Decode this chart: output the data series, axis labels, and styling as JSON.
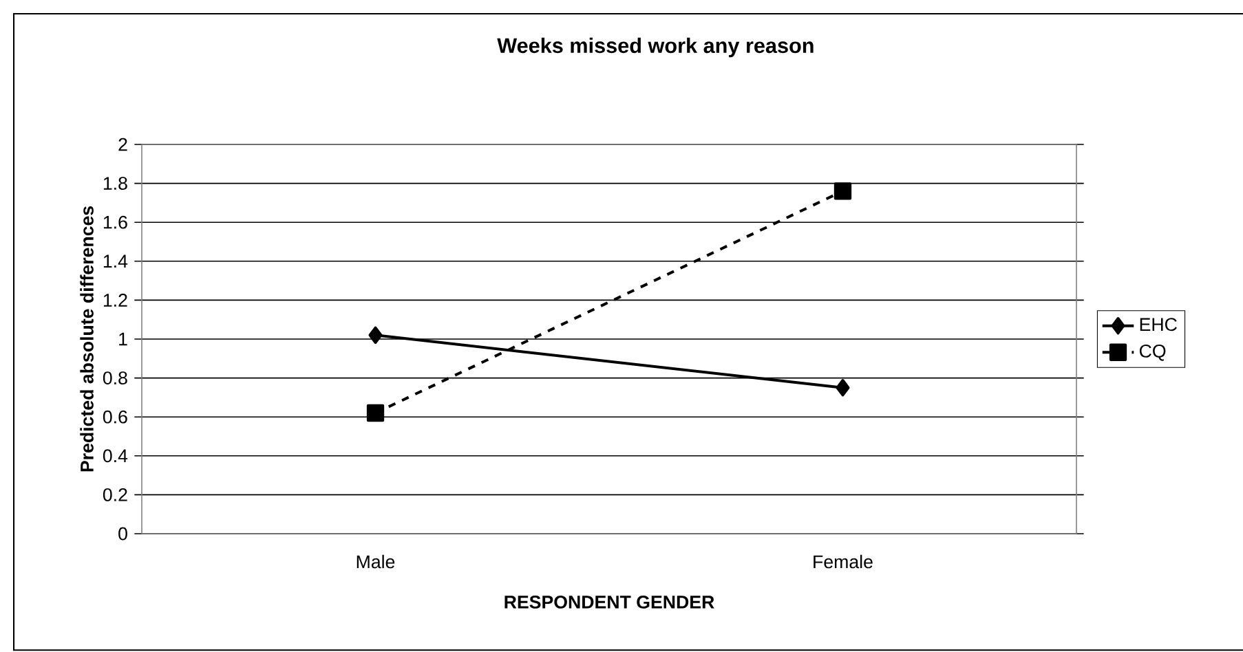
{
  "chart_data": {
    "type": "line",
    "title": "Weeks missed work any reason",
    "xlabel": "RESPONDENT GENDER",
    "ylabel": "Predicted absolute differences",
    "categories": [
      "Male",
      "Female"
    ],
    "series": [
      {
        "name": "EHC",
        "color": "#000000",
        "values": [
          1.02,
          0.75
        ],
        "marker": "diamond",
        "line_style": "solid"
      },
      {
        "name": "CQ",
        "color": "#000000",
        "values": [
          0.62,
          1.76
        ],
        "marker": "square",
        "line_style": "dashed"
      }
    ],
    "ylim": [
      0,
      2
    ],
    "yticks": [
      0,
      0.2,
      0.4,
      0.6,
      0.8,
      1,
      1.2,
      1.4,
      1.6,
      1.8,
      2
    ],
    "grid": "y",
    "legend": "right"
  }
}
